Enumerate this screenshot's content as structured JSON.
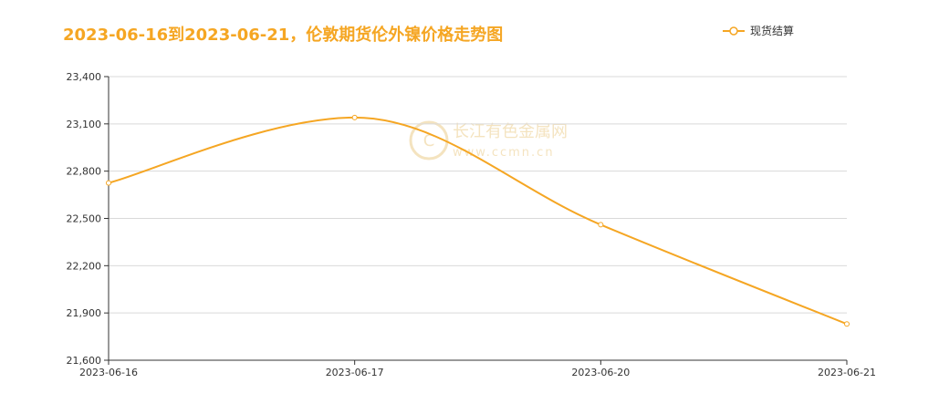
{
  "title": "2023-06-16到2023-06-21，伦敦期货伦外镍价格走势图",
  "legend": {
    "label": "现货结算"
  },
  "watermark": {
    "name": "长江有色金属网",
    "url": "www.ccmn.cn"
  },
  "colors": {
    "line": "#f5a623",
    "title": "#f5a623",
    "grid": "#d9d9d9",
    "axis": "#333333"
  },
  "chart_data": {
    "type": "line",
    "categories": [
      "2023-06-16",
      "2023-06-17",
      "2023-06-20",
      "2023-06-21"
    ],
    "series": [
      {
        "name": "现货结算",
        "values": [
          22725,
          23140,
          22460,
          21830
        ]
      }
    ],
    "ylim": [
      21600,
      23400
    ],
    "yticks": [
      21600,
      21900,
      22200,
      22500,
      22800,
      23100,
      23400
    ],
    "ytick_labels": [
      "21,600",
      "21,900",
      "22,200",
      "22,500",
      "22,800",
      "23,100",
      "23,400"
    ],
    "smooth": true,
    "grid": true,
    "legend_position": "top-right"
  }
}
